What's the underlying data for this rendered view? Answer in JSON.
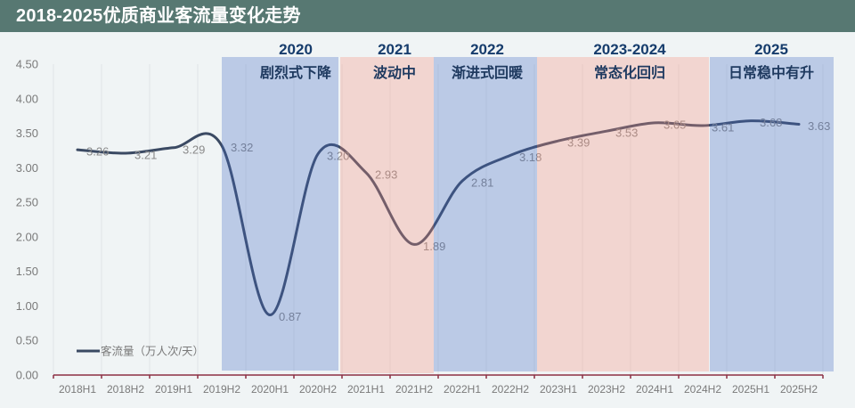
{
  "header": {
    "title": "2018-2025优质商业客流量变化走势"
  },
  "colors": {
    "header_bg": "#577872",
    "background": "#f0f4f5",
    "line": "#3b4a63",
    "band_blue": "rgba(67,107,195,0.30)",
    "band_pink": "rgba(247,144,122,0.30)",
    "axis": "#8c2f43",
    "grid": "#e1e5e7",
    "phase_year": "#163c6c",
    "phase_label": "#1f3a60",
    "data_label": "#8a8a8a",
    "tick_label": "#7a7a7a"
  },
  "chart_data": {
    "type": "line",
    "title": "2018-2025优质商业客流量变化走势",
    "xlabel": "",
    "ylabel": "",
    "categories": [
      "2018H1",
      "2018H2",
      "2019H1",
      "2019H2",
      "2020H1",
      "2020H2",
      "2021H1",
      "2021H2",
      "2022H1",
      "2022H2",
      "2023H1",
      "2023H2",
      "2024H1",
      "2024H2",
      "2025H1",
      "2025H2"
    ],
    "series": [
      {
        "name": "客流量（万人次/天）",
        "values": [
          3.26,
          3.21,
          3.29,
          3.32,
          0.87,
          3.2,
          2.93,
          1.89,
          2.81,
          3.18,
          3.39,
          3.53,
          3.65,
          3.61,
          3.68,
          3.63
        ],
        "value_labels": [
          "3.26",
          "3.21",
          "3.29",
          "3.32",
          "0.87",
          "3.20",
          "2.93",
          "1.89",
          "2.81",
          "3.18",
          "3.39",
          "3.53",
          "3.65",
          "3.61",
          "3.68",
          "3.63"
        ]
      }
    ],
    "ylim": [
      0,
      4.5
    ],
    "yticks": [
      "0.00",
      "0.50",
      "1.00",
      "1.50",
      "2.00",
      "2.50",
      "3.00",
      "3.50",
      "4.00",
      "4.50"
    ],
    "smooth": true,
    "grid": "vertical",
    "data_labels": true,
    "legend_position": "bottom-left (inside plot)",
    "phases": [
      {
        "period": "2020",
        "label": "剧烈式下降",
        "tone": "blue"
      },
      {
        "period": "2021",
        "label": "波动中",
        "tone": "pink"
      },
      {
        "period": "2022",
        "label": "渐进式回暖",
        "tone": "blue"
      },
      {
        "period": "2023-2024",
        "label": "常态化回归",
        "tone": "pink"
      },
      {
        "period": "2025",
        "label": "日常稳中有升",
        "tone": "blue"
      }
    ]
  }
}
